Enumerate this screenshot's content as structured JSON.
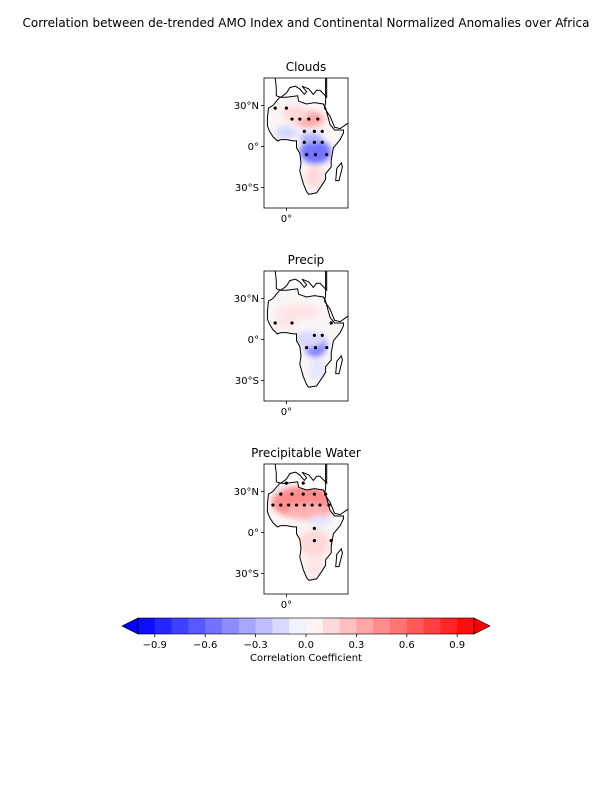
{
  "figure": {
    "title": "Correlation between de-trended AMO Index and Continental Normalized Anomalies over Africa"
  },
  "axes_ticks": {
    "lat": [
      "30°N",
      "0°",
      "30°S"
    ],
    "lon": [
      "0°"
    ]
  },
  "panels": [
    {
      "title": "Clouds",
      "patches": [
        {
          "cx": 20,
          "cy": 20,
          "rx": 14,
          "ry": 6,
          "r": 0.35
        },
        {
          "cx": 8,
          "cy": 24,
          "rx": 12,
          "ry": 6,
          "r": 0.15
        },
        {
          "cx": 26,
          "cy": -4,
          "rx": 14,
          "ry": 9,
          "r": -0.55
        },
        {
          "cx": 22,
          "cy": 6,
          "rx": 10,
          "ry": 4,
          "r": -0.3
        },
        {
          "cx": 0,
          "cy": 10,
          "rx": 10,
          "ry": 5,
          "r": -0.15
        },
        {
          "cx": 25,
          "cy": -22,
          "rx": 8,
          "ry": 8,
          "r": 0.15
        }
      ],
      "dots": [
        [
          -10,
          28
        ],
        [
          0,
          28
        ],
        [
          5,
          20
        ],
        [
          12,
          20
        ],
        [
          20,
          20
        ],
        [
          28,
          20
        ],
        [
          16,
          11
        ],
        [
          25,
          11
        ],
        [
          32,
          11
        ],
        [
          16,
          3
        ],
        [
          25,
          3
        ],
        [
          32,
          3
        ],
        [
          18,
          -6
        ],
        [
          26,
          -6
        ],
        [
          36,
          -6
        ]
      ]
    },
    {
      "title": "Precip",
      "patches": [
        {
          "cx": 26,
          "cy": -4,
          "rx": 10,
          "ry": 9,
          "r": -0.5
        },
        {
          "cx": 10,
          "cy": 20,
          "rx": 20,
          "ry": 6,
          "r": 0.1
        },
        {
          "cx": 20,
          "cy": 0,
          "rx": 14,
          "ry": 6,
          "r": -0.15
        },
        {
          "cx": 28,
          "cy": -22,
          "rx": 8,
          "ry": 8,
          "r": -0.1
        },
        {
          "cx": 0,
          "cy": 12,
          "rx": 10,
          "ry": 4,
          "r": 0.1
        }
      ],
      "dots": [
        [
          -10,
          12
        ],
        [
          5,
          12
        ],
        [
          25,
          3
        ],
        [
          32,
          3
        ],
        [
          40,
          12
        ],
        [
          18,
          -6
        ],
        [
          26,
          -6
        ],
        [
          36,
          -6
        ]
      ]
    },
    {
      "title": "Precipitable Water",
      "patches": [
        {
          "cx": 15,
          "cy": 22,
          "rx": 28,
          "ry": 12,
          "r": 0.45
        },
        {
          "cx": 20,
          "cy": 15,
          "rx": 20,
          "ry": 6,
          "r": 0.3
        },
        {
          "cx": 25,
          "cy": -8,
          "rx": 14,
          "ry": 10,
          "r": 0.15
        },
        {
          "cx": 25,
          "cy": -25,
          "rx": 8,
          "ry": 8,
          "r": 0.1
        },
        {
          "cx": 30,
          "cy": 8,
          "rx": 10,
          "ry": 4,
          "r": -0.1
        }
      ],
      "dots": [
        [
          0,
          36
        ],
        [
          15,
          36
        ],
        [
          -5,
          28
        ],
        [
          5,
          28
        ],
        [
          15,
          28
        ],
        [
          25,
          28
        ],
        [
          35,
          28
        ],
        [
          -12,
          20
        ],
        [
          -5,
          20
        ],
        [
          2,
          20
        ],
        [
          9,
          20
        ],
        [
          16,
          20
        ],
        [
          23,
          20
        ],
        [
          30,
          20
        ],
        [
          38,
          20
        ],
        [
          25,
          -6
        ],
        [
          40,
          -6
        ],
        [
          25,
          3
        ]
      ]
    }
  ],
  "colorbar": {
    "label": "Correlation Coefficient",
    "ticks": [
      "−0.9",
      "−0.6",
      "−0.3",
      "0.0",
      "0.3",
      "0.6",
      "0.9"
    ],
    "levels": [
      -1.0,
      -0.9,
      -0.8,
      -0.7,
      -0.6,
      -0.5,
      -0.4,
      -0.3,
      -0.2,
      -0.1,
      0.0,
      0.1,
      0.2,
      0.3,
      0.4,
      0.5,
      0.6,
      0.7,
      0.8,
      0.9,
      1.0
    ],
    "colors": {
      "negative": "#0000ff",
      "neutral": "#ffffff",
      "positive": "#ff0000"
    }
  }
}
